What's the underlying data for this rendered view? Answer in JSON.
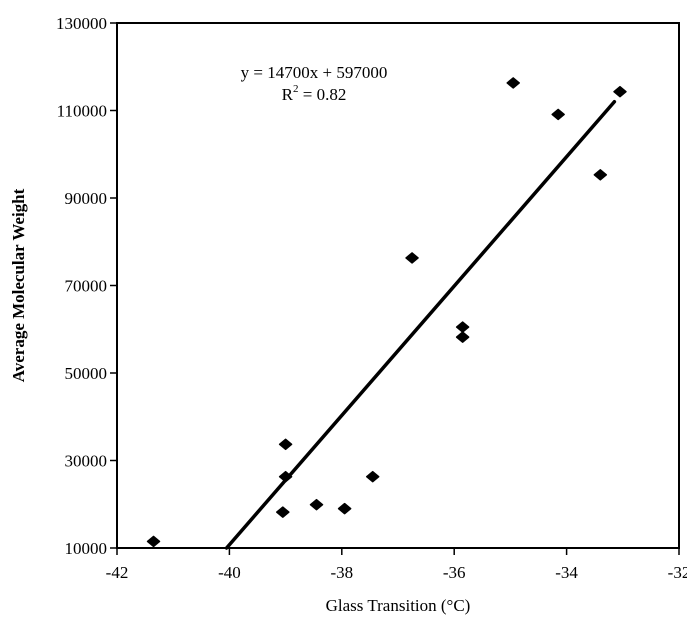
{
  "chart_data": {
    "type": "scatter",
    "xlabel": "Glass Transition (°C)",
    "ylabel": "Average Molecular Weight",
    "xlim": [
      -42,
      -32
    ],
    "ylim": [
      10000,
      130000
    ],
    "x_ticks": [
      "-42",
      "-40",
      "-38",
      "-36",
      "-34",
      "-32"
    ],
    "y_ticks": [
      "10000",
      "30000",
      "50000",
      "70000",
      "90000",
      "110000",
      "130000"
    ],
    "grid": false,
    "series": [
      {
        "points": [
          {
            "x": -41.35,
            "y": 11500
          },
          {
            "x": -39.0,
            "y": 33700
          },
          {
            "x": -39.0,
            "y": 26300
          },
          {
            "x": -39.05,
            "y": 18200
          },
          {
            "x": -38.45,
            "y": 19900
          },
          {
            "x": -37.95,
            "y": 19000
          },
          {
            "x": -37.45,
            "y": 26300
          },
          {
            "x": -36.75,
            "y": 76300
          },
          {
            "x": -35.85,
            "y": 60500
          },
          {
            "x": -35.85,
            "y": 58200
          },
          {
            "x": -34.95,
            "y": 116300
          },
          {
            "x": -34.15,
            "y": 109100
          },
          {
            "x": -33.4,
            "y": 95300
          },
          {
            "x": -33.05,
            "y": 114300
          }
        ]
      }
    ],
    "trendline": {
      "x": [
        -40.05,
        -33.15
      ],
      "y": [
        10000,
        112000
      ]
    },
    "annotations": {
      "equation": "y = 14700x + 597000",
      "r2_prefix": "R",
      "r2_exponent": "2",
      "r2_suffix": " = 0.82"
    }
  }
}
